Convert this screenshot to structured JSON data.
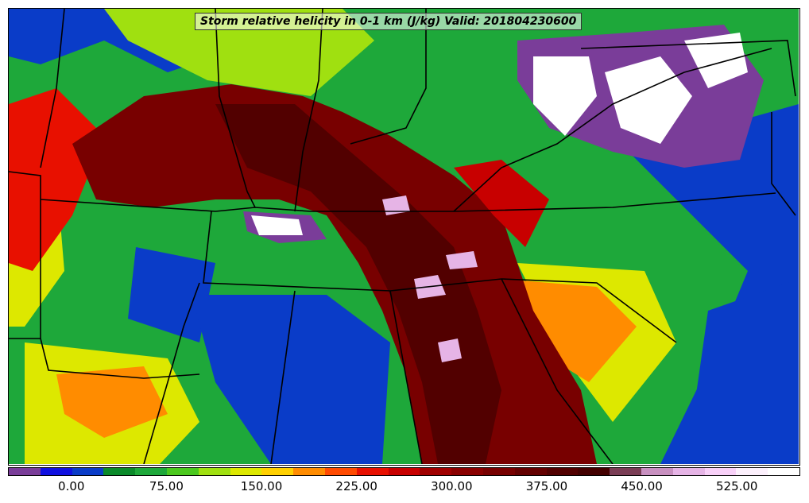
{
  "title": "Storm relative helicity in 0-1 km (J/kg) Valid: 201804230600",
  "colorbar": {
    "min": -50,
    "max": 575,
    "step": 25,
    "ticks": [
      "0.00",
      "75.00",
      "150.00",
      "225.00",
      "300.00",
      "375.00",
      "450.00",
      "525.00"
    ],
    "tick_values": [
      0,
      75,
      150,
      225,
      300,
      375,
      450,
      525
    ],
    "colors": [
      "#7a3d99",
      "#1010e0",
      "#0a3cc8",
      "#0a8a2a",
      "#1ea83a",
      "#4bc81e",
      "#a0e010",
      "#dde800",
      "#ffd000",
      "#ff8c00",
      "#ff4a00",
      "#e81000",
      "#c80000",
      "#a00000",
      "#8a0000",
      "#780000",
      "#640000",
      "#520000",
      "#440000",
      "#7a3d55",
      "#c890c0",
      "#e6b4e6",
      "#f8d0f8",
      "#fcf0fc",
      "#ffffff"
    ]
  },
  "map": {
    "background": "#1ea83a",
    "fields": [
      {
        "name": "west-coast-red",
        "color": "#e81000"
      },
      {
        "name": "central-maroon-band",
        "color": "#780000"
      },
      {
        "name": "south-maroon-band",
        "color": "#8a0000"
      },
      {
        "name": "east-blue-coast",
        "color": "#0a3cc8"
      },
      {
        "name": "appalachian-purple",
        "color": "#7a3d99"
      },
      {
        "name": "appalachian-white",
        "color": "#ffffff"
      }
    ]
  }
}
